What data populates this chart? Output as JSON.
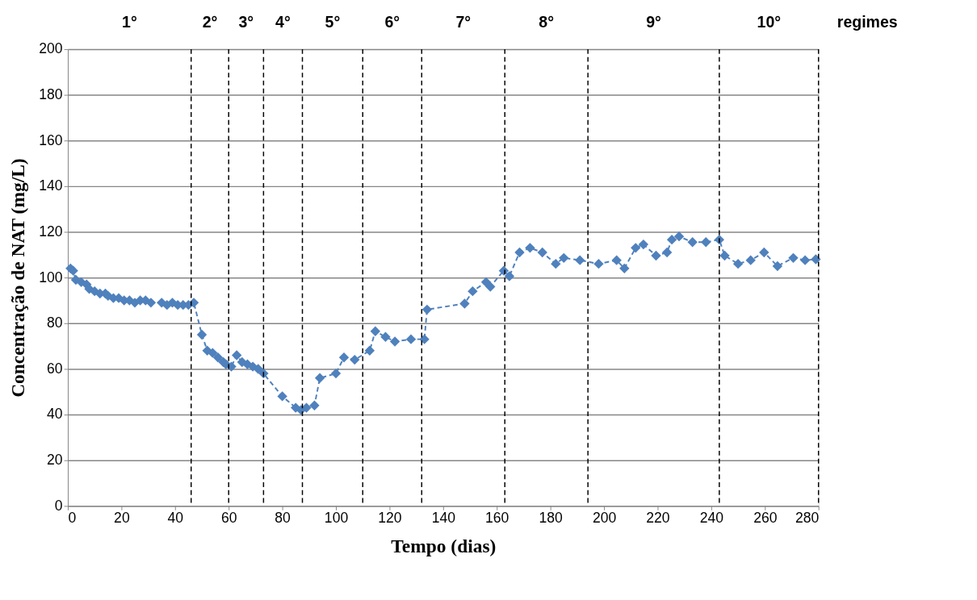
{
  "chart_data": {
    "type": "line",
    "xlabel": "Tempo (dias)",
    "ylabel": "Concentração de NAT (mg/L)",
    "annotations": [
      "1°",
      "2°",
      "3°",
      "4°",
      "5°",
      "6°",
      "7°",
      "8°",
      "9°",
      "10°",
      "regimes"
    ],
    "x": [
      1,
      2,
      3,
      5,
      7,
      8,
      10,
      12,
      14,
      15,
      17,
      19,
      21,
      23,
      25,
      27,
      29,
      31,
      35,
      37,
      39,
      41,
      43,
      45,
      47,
      50,
      52,
      54,
      56,
      58,
      59,
      61,
      63,
      65,
      67,
      69,
      71,
      73,
      80,
      85,
      87,
      89,
      92,
      94,
      100,
      103,
      107,
      112.6,
      114.7,
      118.5,
      122,
      128,
      133,
      134,
      148,
      151,
      156,
      157.6,
      162.6,
      164.7,
      168.5,
      172.4,
      177,
      182,
      185,
      191,
      198,
      204.7,
      207.6,
      211.8,
      214.7,
      219.4,
      223.5,
      225.3,
      228,
      233,
      238,
      243,
      245,
      250,
      254.7,
      259.7,
      264.7,
      270.6,
      275,
      279
    ],
    "series": [
      {
        "color": "#4f81bd",
        "values": [
          104,
          103,
          99,
          98,
          97,
          95,
          94,
          93,
          93,
          92,
          91,
          91,
          90,
          90,
          89,
          90,
          90,
          89,
          89,
          88,
          89,
          88,
          88,
          88,
          89,
          75,
          68,
          67,
          65,
          63,
          62,
          61,
          66,
          63,
          62,
          61,
          60,
          58,
          48,
          43,
          42,
          43,
          44,
          56,
          58,
          65,
          64,
          68,
          76.5,
          74,
          72,
          73,
          73,
          86,
          88.6,
          94,
          98,
          96,
          103,
          100.6,
          111,
          113,
          111,
          106,
          108.6,
          107.6,
          106,
          107.6,
          104,
          113,
          114.5,
          109.6,
          111,
          116.6,
          118,
          115.5,
          115.5,
          116.6,
          109.6,
          106,
          107.6,
          111,
          105,
          108.6,
          107.6,
          108
        ]
      }
    ],
    "marker": "diamond",
    "line_style": "dashed",
    "grid": "y",
    "xlim": [
      0,
      280
    ],
    "xticks": [
      0,
      20,
      40,
      60,
      80,
      100,
      120,
      140,
      160,
      180,
      200,
      220,
      240,
      260,
      280
    ],
    "ylim": [
      0,
      200
    ],
    "yticks": [
      0,
      20,
      40,
      60,
      80,
      100,
      120,
      140,
      160,
      180,
      200
    ],
    "ref_lines": [
      {
        "axis": "x",
        "value": 46,
        "color": "#000000",
        "line_style": "dashed"
      },
      {
        "axis": "x",
        "value": 60,
        "color": "#000000",
        "line_style": "dashed"
      },
      {
        "axis": "x",
        "value": 73,
        "color": "#000000",
        "line_style": "dashed"
      },
      {
        "axis": "x",
        "value": 87.5,
        "color": "#000000",
        "line_style": "dashed"
      },
      {
        "axis": "x",
        "value": 110,
        "color": "#000000",
        "line_style": "dashed"
      },
      {
        "axis": "x",
        "value": 132,
        "color": "#000000",
        "line_style": "dashed"
      },
      {
        "axis": "x",
        "value": 163,
        "color": "#000000",
        "line_style": "dashed"
      },
      {
        "axis": "x",
        "value": 194,
        "color": "#000000",
        "line_style": "dashed"
      },
      {
        "axis": "x",
        "value": 243,
        "color": "#000000",
        "line_style": "dashed"
      },
      {
        "axis": "x",
        "value": 280,
        "color": "#000000",
        "line_style": "dashed"
      }
    ]
  }
}
